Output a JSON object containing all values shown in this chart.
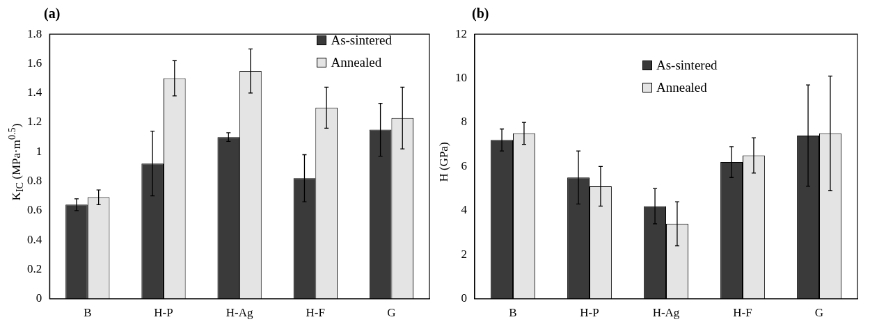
{
  "chart_data": [
    {
      "type": "bar",
      "title": "(a)",
      "ylabel": "K$_{IC}$ (MPa·m$^{0.5}$)",
      "categories": [
        "B",
        "H-P",
        "H-Ag",
        "H-F",
        "G"
      ],
      "ylim": [
        0,
        1.8
      ],
      "yticks": [
        0,
        0.2,
        0.4,
        0.6,
        0.8,
        1,
        1.2,
        1.4,
        1.6,
        1.8
      ],
      "legend": "top right",
      "series": [
        {
          "name": "As-sintered",
          "color": "#3a3a3a",
          "values": [
            0.64,
            0.92,
            1.1,
            0.82,
            1.15
          ],
          "errors": [
            [
              0.6,
              0.68
            ],
            [
              0.7,
              1.14
            ],
            [
              1.07,
              1.13
            ],
            [
              0.66,
              0.98
            ],
            [
              0.97,
              1.33
            ]
          ]
        },
        {
          "name": "Annealed",
          "color": "#e4e4e4",
          "values": [
            0.69,
            1.5,
            1.55,
            1.3,
            1.23
          ],
          "errors": [
            [
              0.64,
              0.74
            ],
            [
              1.38,
              1.62
            ],
            [
              1.4,
              1.7
            ],
            [
              1.16,
              1.44
            ],
            [
              1.02,
              1.44
            ]
          ]
        }
      ]
    },
    {
      "type": "bar",
      "title": "(b)",
      "ylabel": "H (GPa)",
      "categories": [
        "B",
        "H-P",
        "H-Ag",
        "H-F",
        "G"
      ],
      "ylim": [
        0,
        12
      ],
      "yticks": [
        0,
        2,
        4,
        6,
        8,
        10,
        12
      ],
      "legend": "top",
      "series": [
        {
          "name": "As-sintered",
          "color": "#3a3a3a",
          "values": [
            7.2,
            5.5,
            4.2,
            6.2,
            7.4
          ],
          "errors": [
            [
              6.7,
              7.7
            ],
            [
              4.3,
              6.7
            ],
            [
              3.4,
              5
            ],
            [
              5.5,
              6.9
            ],
            [
              5.1,
              9.7
            ]
          ]
        },
        {
          "name": "Annealed",
          "color": "#e4e4e4",
          "values": [
            7.5,
            5.1,
            3.4,
            6.5,
            7.5
          ],
          "errors": [
            [
              7,
              8
            ],
            [
              4.2,
              6
            ],
            [
              2.4,
              4.4
            ],
            [
              5.7,
              7.3
            ],
            [
              4.9,
              10.1
            ]
          ]
        }
      ]
    }
  ]
}
